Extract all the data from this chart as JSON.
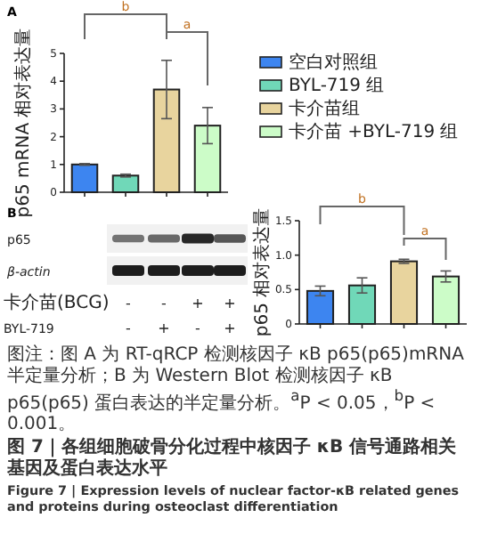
{
  "chart_data": [
    {
      "type": "bar",
      "title": "A",
      "ylabel": "p65 mRNA 相对表达量",
      "categories": [
        null,
        null,
        null,
        null
      ],
      "series": [
        {
          "name": "空白对照组",
          "color": "#3d85f0",
          "values": [
            1.0,
            null,
            null,
            null
          ],
          "errors": [
            0.03,
            null,
            null,
            null
          ]
        },
        {
          "name": "BYL-719 组",
          "color": "#70d8b8",
          "values": [
            null,
            0.6,
            null,
            null
          ],
          "errors": [
            null,
            0.05,
            null,
            null
          ]
        },
        {
          "name": "卡介苗组",
          "color": "#e8d49e",
          "values": [
            null,
            null,
            3.7,
            null
          ],
          "errors": [
            null,
            null,
            1.05,
            null
          ]
        },
        {
          "name": "卡介苗 +BYL-719 组",
          "color": "#ccfcc8",
          "values": [
            null,
            null,
            null,
            2.4
          ],
          "errors": [
            null,
            null,
            null,
            0.65
          ]
        }
      ],
      "ylim": [
        0,
        5
      ],
      "yticks": [
        0,
        1,
        2,
        3,
        4,
        5
      ],
      "tick_labels": "y",
      "legend": "right",
      "annotations": [
        "b",
        "a"
      ]
    },
    {
      "type": "other",
      "title": "B",
      "annotations": [
        "p65",
        "β-actin",
        "卡介苗(BCG)",
        "BYL-719",
        "-",
        "-",
        "+",
        "+",
        "-",
        "+",
        "-",
        "+"
      ]
    },
    {
      "type": "bar",
      "ylabel": "p65 相对表达量",
      "categories": [
        null,
        null,
        null,
        null
      ],
      "values": [
        0.48,
        0.56,
        0.91,
        0.69
      ],
      "errors": [
        0.07,
        0.11,
        0.03,
        0.08
      ],
      "colors": [
        "#3d85f0",
        "#70d8b8",
        "#e8d49e",
        "#ccfcc8"
      ],
      "ylim": [
        0,
        1.5
      ],
      "yticks": [
        0,
        0.5,
        {
          "value": 1.0,
          "label": "1.0"
        },
        1.5
      ],
      "tick_labels": "y",
      "annotations": [
        "b",
        "a"
      ]
    },
    {
      "type": "other",
      "annotations": [
        "图注：图 A 为 RT-qRCP 检测核因子 κB p65(p65)mRNA 半定量分析；B 为 Western Blot 检测核因子 κB p65(p65) 蛋白表达的半定量分析。$^{a}$P < 0.05，$^{b}$P < 0.001。",
        "图 7｜各组细胞破骨分化过程中核因子 κB 信号通路相关基因及蛋白表达水平",
        "Figure 7 | Expression levels of nuclear factor-κB related genes and proteins during osteoclast differentiation"
      ]
    }
  ]
}
